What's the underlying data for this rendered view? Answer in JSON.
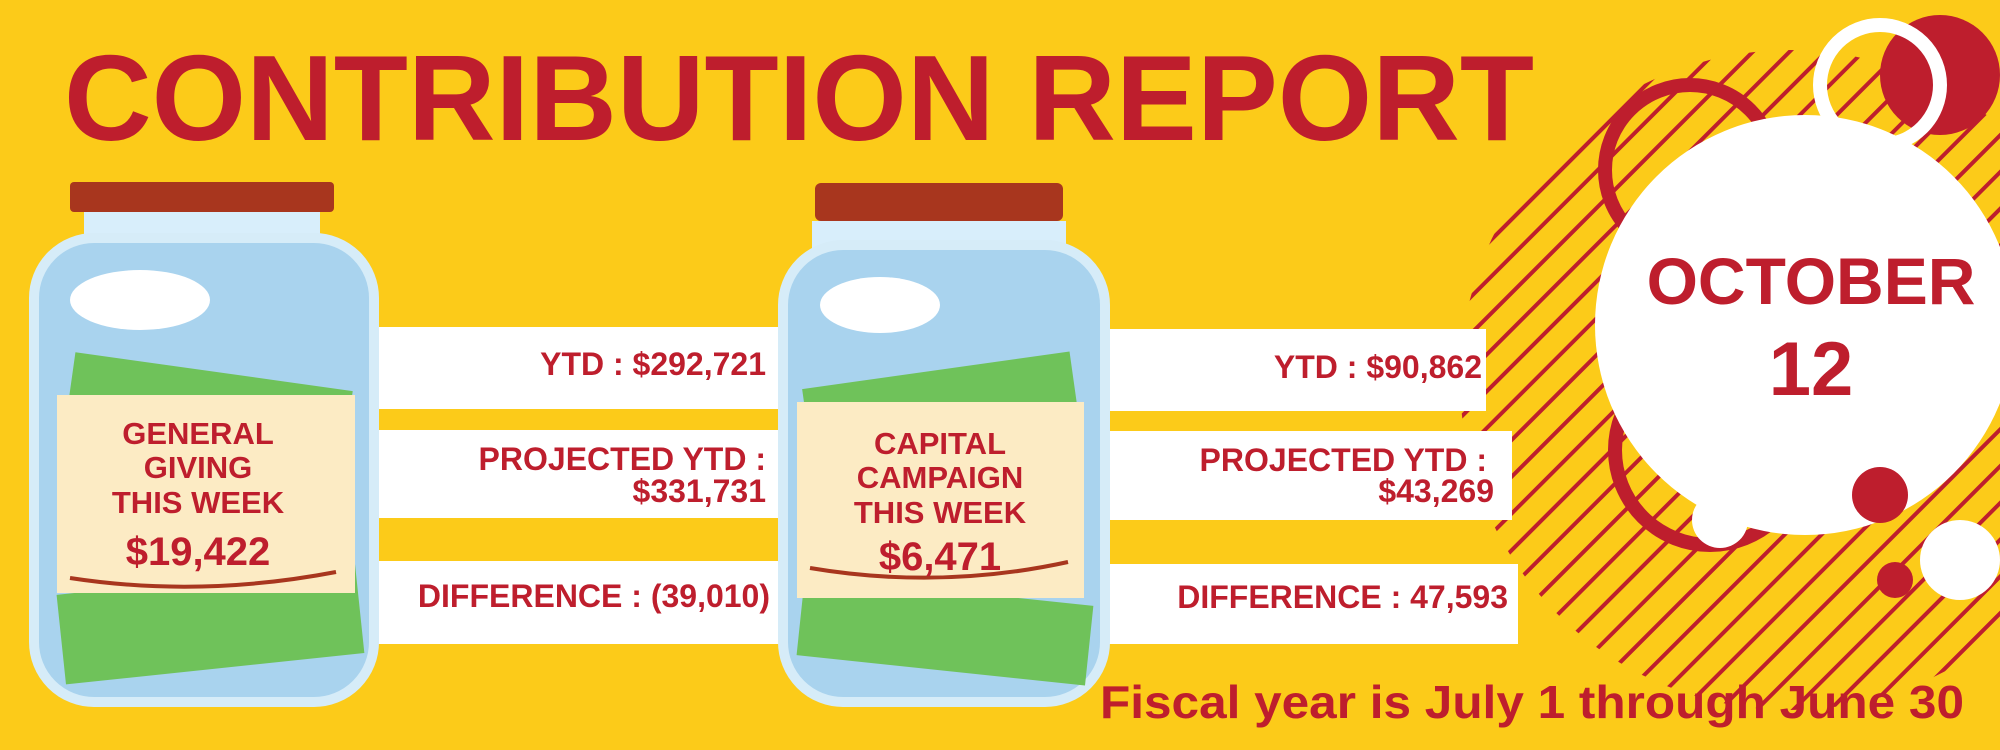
{
  "title": "CONTRIBUTION REPORT",
  "date": {
    "month": "OCTOBER",
    "day": "12"
  },
  "jars": [
    {
      "label": [
        "GENERAL",
        "GIVING",
        "THIS WEEK"
      ],
      "amount": "$19,422",
      "ytd": "YTD : $292,721",
      "projected": [
        "PROJECTED YTD :",
        "$331,731"
      ],
      "difference": "DIFFERENCE : (39,010)"
    },
    {
      "label": [
        "CAPITAL",
        "CAMPAIGN",
        "THIS WEEK"
      ],
      "amount": "$6,471",
      "ytd": "YTD : $90,862",
      "projected": [
        "PROJECTED YTD :",
        "$43,269"
      ],
      "difference": "DIFFERENCE : 47,593"
    }
  ],
  "footer": "Fiscal year is July 1 through June 30"
}
